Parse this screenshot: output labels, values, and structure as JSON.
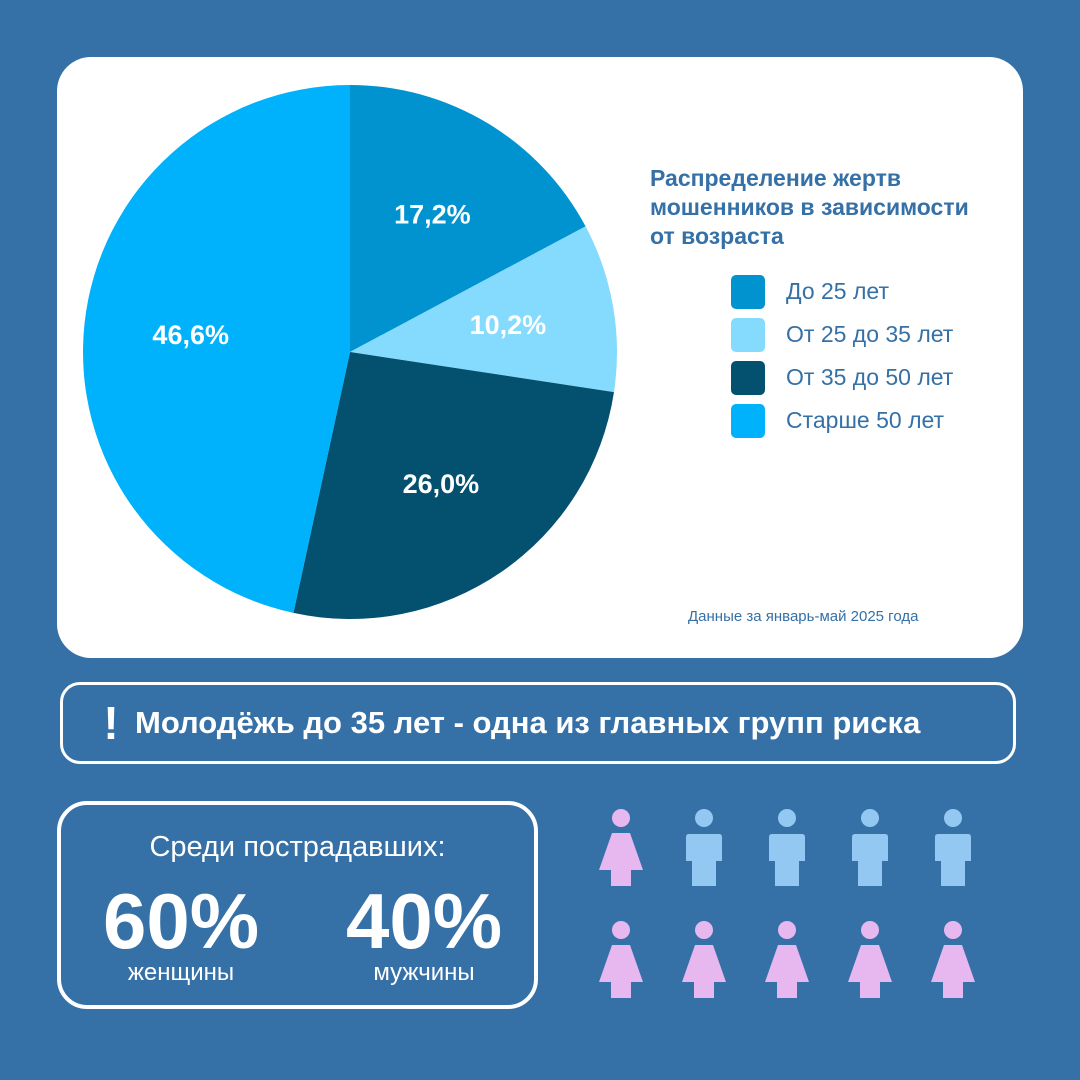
{
  "colors": {
    "background": "#3570a6",
    "card": "#ffffff",
    "text_accent": "#3570a6",
    "female": "#e7b7ef",
    "male": "#93c8f3"
  },
  "chart_data": {
    "type": "pie",
    "title": "Распределение жертв мошенников в зависимости от возраста",
    "slices": [
      {
        "label": "До 25 лет",
        "value": 17.2,
        "display": "17,2%",
        "color": "#0193d0"
      },
      {
        "label": "От 25 до 35 лет",
        "value": 10.2,
        "display": "10,2%",
        "color": "#84dbfd"
      },
      {
        "label": "От 35 до 50 лет",
        "value": 26.0,
        "display": "26,0%",
        "color": "#03506f"
      },
      {
        "label": "Старше 50 лет",
        "value": 46.6,
        "display": "46,6%",
        "color": "#00b2fc"
      }
    ],
    "start": "12 o'clock, clockwise",
    "legend_position": "right"
  },
  "footnote": "Данные за январь-май 2025 года",
  "banner": {
    "icon": "exclamation-icon",
    "icon_glyph": "!",
    "text": "Молодёжь до 35 лет - одна из главных групп риска"
  },
  "stats": {
    "title": "Среди пострадавших:",
    "women": {
      "value": "60%",
      "label": "женщины"
    },
    "men": {
      "value": "40%",
      "label": "мужчины"
    }
  },
  "people_grid": {
    "rows": [
      [
        "female",
        "male",
        "male",
        "male",
        "male"
      ],
      [
        "female",
        "female",
        "female",
        "female",
        "female"
      ]
    ]
  }
}
